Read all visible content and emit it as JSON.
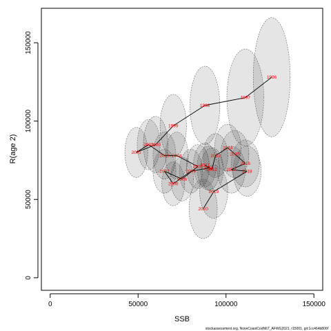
{
  "chart_data": {
    "type": "scatter",
    "xlabel": "SSB",
    "ylabel": "R(age 2)",
    "xlim": [
      -5000,
      155000
    ],
    "ylim": [
      -8000,
      172000
    ],
    "x_ticks": [
      0,
      50000,
      100000,
      150000
    ],
    "y_ticks": [
      0,
      50000,
      100000,
      150000
    ],
    "grid": false,
    "footer": "stockassessment.org, NorwCoastCodN67_AFWG2021, r15001, git:1cc464b806f",
    "colors": {
      "path": "#000000",
      "labels": "#ff0000",
      "ellipse_fill": "#000000",
      "ellipse_border": "#666666"
    },
    "points": [
      {
        "year": "1996",
        "ssb": 126000,
        "rec": 128000,
        "rx": 10500,
        "ry": 38000
      },
      {
        "year": "1997",
        "ssb": 111000,
        "rec": 115000,
        "rx": 10500,
        "ry": 31000
      },
      {
        "year": "1998",
        "ssb": 88000,
        "rec": 110000,
        "rx": 8500,
        "ry": 25000
      },
      {
        "year": "1999",
        "ssb": 70000,
        "rec": 97000,
        "rx": 7500,
        "ry": 20000
      },
      {
        "year": "2000",
        "ssb": 60000,
        "rec": 85000,
        "rx": 7000,
        "ry": 18000
      },
      {
        "year": "2001",
        "ssb": 49000,
        "rec": 80000,
        "rx": 6500,
        "ry": 16000
      },
      {
        "year": "2002",
        "ssb": 56000,
        "rec": 85000,
        "rx": 6500,
        "ry": 16000
      },
      {
        "year": "2003",
        "ssb": 65000,
        "rec": 78000,
        "rx": 6500,
        "ry": 15000
      },
      {
        "year": "2004",
        "ssb": 72000,
        "rec": 78000,
        "rx": 6500,
        "ry": 15000
      },
      {
        "year": "2005",
        "ssb": 84000,
        "rec": 71000,
        "rx": 6500,
        "ry": 14000
      },
      {
        "year": "2006",
        "ssb": 75000,
        "rec": 63000,
        "rx": 6500,
        "ry": 14000
      },
      {
        "year": "2007",
        "ssb": 65000,
        "rec": 68000,
        "rx": 6500,
        "ry": 14000
      },
      {
        "year": "2008",
        "ssb": 70000,
        "rec": 60000,
        "rx": 6500,
        "ry": 14000
      },
      {
        "year": "2009",
        "ssb": 80000,
        "rec": 68000,
        "rx": 6500,
        "ry": 14000
      },
      {
        "year": "2010",
        "ssb": 90000,
        "rec": 70000,
        "rx": 6500,
        "ry": 14000
      },
      {
        "year": "2011",
        "ssb": 88000,
        "rec": 72000,
        "rx": 6500,
        "ry": 14000
      },
      {
        "year": "2012",
        "ssb": 92000,
        "rec": 69000,
        "rx": 6500,
        "ry": 14000
      },
      {
        "year": "2013",
        "ssb": 94000,
        "rec": 78000,
        "rx": 7000,
        "ry": 14000
      },
      {
        "year": "2014",
        "ssb": 101000,
        "rec": 83000,
        "rx": 7500,
        "ry": 15000
      },
      {
        "year": "2015",
        "ssb": 105000,
        "rec": 79000,
        "rx": 8000,
        "ry": 15000
      },
      {
        "year": "2016",
        "ssb": 111000,
        "rec": 73000,
        "rx": 8000,
        "ry": 15000
      },
      {
        "year": "2017",
        "ssb": 103000,
        "rec": 69000,
        "rx": 8000,
        "ry": 15000
      },
      {
        "year": "2018",
        "ssb": 112000,
        "rec": 68000,
        "rx": 8000,
        "ry": 16000
      },
      {
        "year": "2019",
        "ssb": 93000,
        "rec": 55000,
        "rx": 8000,
        "ry": 17000
      },
      {
        "year": "2020",
        "ssb": 87000,
        "rec": 44000,
        "rx": 8000,
        "ry": 19000
      }
    ]
  }
}
